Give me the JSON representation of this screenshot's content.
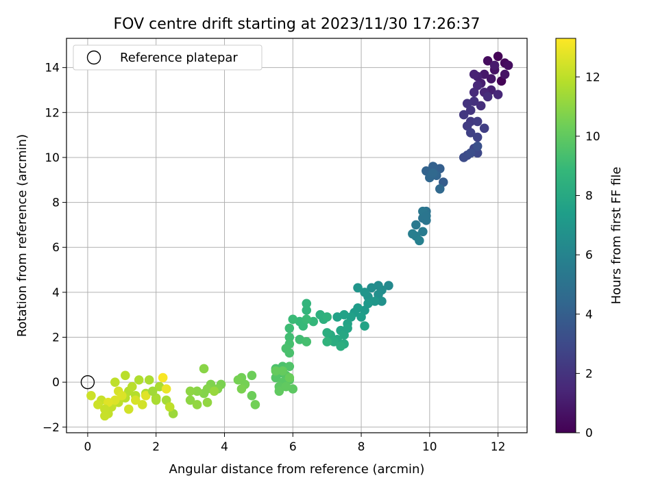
{
  "chart_data": {
    "type": "scatter",
    "title": "FOV centre drift starting at 2023/11/30 17:26:37",
    "xlabel": "Angular distance from reference (arcmin)",
    "ylabel": "Rotation from reference (arcmin)",
    "xlim": [
      -0.62,
      12.85
    ],
    "ylim": [
      -2.25,
      15.3
    ],
    "xticks": [
      "0",
      "2",
      "4",
      "6",
      "8",
      "10",
      "12"
    ],
    "yticks": [
      "−2",
      "0",
      "2",
      "4",
      "6",
      "8",
      "10",
      "12",
      "14"
    ],
    "grid": true,
    "legend": {
      "placement": "top-left",
      "entries": [
        "Reference platepar"
      ]
    },
    "reference_point": {
      "x": 0,
      "y": 0
    },
    "colorbar": {
      "label": "Hours from first FF file",
      "range": [
        0,
        13.3
      ],
      "ticks": [
        "0",
        "2",
        "4",
        "6",
        "8",
        "10",
        "12"
      ],
      "colormap": "viridis"
    },
    "points": [
      {
        "x": 12.0,
        "y": 14.5,
        "t": 0.1
      },
      {
        "x": 12.1,
        "y": 13.4,
        "t": 0.1
      },
      {
        "x": 12.2,
        "y": 14.2,
        "t": 0.3
      },
      {
        "x": 11.7,
        "y": 14.3,
        "t": 0.4
      },
      {
        "x": 12.3,
        "y": 14.1,
        "t": 0.5
      },
      {
        "x": 11.9,
        "y": 13.9,
        "t": 0.6
      },
      {
        "x": 12.2,
        "y": 13.7,
        "t": 0.7
      },
      {
        "x": 11.8,
        "y": 13.5,
        "t": 0.8
      },
      {
        "x": 11.6,
        "y": 13.7,
        "t": 0.9
      },
      {
        "x": 11.9,
        "y": 14.1,
        "t": 1.0
      },
      {
        "x": 11.5,
        "y": 13.3,
        "t": 1.1
      },
      {
        "x": 11.4,
        "y": 13.6,
        "t": 1.2
      },
      {
        "x": 11.8,
        "y": 13.0,
        "t": 1.2
      },
      {
        "x": 11.3,
        "y": 13.7,
        "t": 1.3
      },
      {
        "x": 11.6,
        "y": 12.9,
        "t": 1.4
      },
      {
        "x": 11.4,
        "y": 13.2,
        "t": 1.5
      },
      {
        "x": 12.0,
        "y": 12.8,
        "t": 1.5
      },
      {
        "x": 11.3,
        "y": 12.9,
        "t": 1.6
      },
      {
        "x": 11.7,
        "y": 12.7,
        "t": 1.7
      },
      {
        "x": 11.5,
        "y": 12.3,
        "t": 1.8
      },
      {
        "x": 11.3,
        "y": 12.5,
        "t": 1.9
      },
      {
        "x": 11.1,
        "y": 12.4,
        "t": 2.0
      },
      {
        "x": 11.2,
        "y": 12.1,
        "t": 2.1
      },
      {
        "x": 11.0,
        "y": 11.9,
        "t": 2.2
      },
      {
        "x": 11.2,
        "y": 11.6,
        "t": 2.3
      },
      {
        "x": 11.4,
        "y": 11.6,
        "t": 2.4
      },
      {
        "x": 11.1,
        "y": 11.4,
        "t": 2.4
      },
      {
        "x": 11.6,
        "y": 11.3,
        "t": 2.5
      },
      {
        "x": 11.2,
        "y": 11.1,
        "t": 2.6
      },
      {
        "x": 11.4,
        "y": 10.9,
        "t": 2.7
      },
      {
        "x": 11.3,
        "y": 10.4,
        "t": 2.8
      },
      {
        "x": 11.4,
        "y": 10.2,
        "t": 2.9
      },
      {
        "x": 11.1,
        "y": 10.1,
        "t": 3.0
      },
      {
        "x": 11.0,
        "y": 10.0,
        "t": 3.1
      },
      {
        "x": 11.2,
        "y": 10.2,
        "t": 3.2
      },
      {
        "x": 11.4,
        "y": 10.5,
        "t": 3.3
      },
      {
        "x": 10.4,
        "y": 8.9,
        "t": 3.9
      },
      {
        "x": 10.3,
        "y": 9.5,
        "t": 4.0
      },
      {
        "x": 10.1,
        "y": 9.6,
        "t": 4.1
      },
      {
        "x": 9.9,
        "y": 9.4,
        "t": 4.2
      },
      {
        "x": 10.2,
        "y": 9.2,
        "t": 4.3
      },
      {
        "x": 10.0,
        "y": 9.1,
        "t": 4.4
      },
      {
        "x": 10.3,
        "y": 8.6,
        "t": 4.5
      },
      {
        "x": 10.1,
        "y": 9.3,
        "t": 4.5
      },
      {
        "x": 9.9,
        "y": 7.6,
        "t": 5.0
      },
      {
        "x": 9.8,
        "y": 7.3,
        "t": 5.1
      },
      {
        "x": 9.9,
        "y": 7.2,
        "t": 5.2
      },
      {
        "x": 9.8,
        "y": 7.6,
        "t": 5.3
      },
      {
        "x": 9.6,
        "y": 7.0,
        "t": 5.4
      },
      {
        "x": 9.8,
        "y": 6.7,
        "t": 5.5
      },
      {
        "x": 9.6,
        "y": 6.5,
        "t": 5.6
      },
      {
        "x": 9.5,
        "y": 6.6,
        "t": 5.7
      },
      {
        "x": 9.7,
        "y": 6.3,
        "t": 5.8
      },
      {
        "x": 9.9,
        "y": 7.4,
        "t": 5.2
      },
      {
        "x": 8.8,
        "y": 4.3,
        "t": 6.3
      },
      {
        "x": 8.5,
        "y": 4.3,
        "t": 6.4
      },
      {
        "x": 8.6,
        "y": 4.1,
        "t": 6.5
      },
      {
        "x": 8.3,
        "y": 4.2,
        "t": 6.5
      },
      {
        "x": 8.5,
        "y": 3.9,
        "t": 6.6
      },
      {
        "x": 8.6,
        "y": 3.6,
        "t": 6.7
      },
      {
        "x": 8.2,
        "y": 3.8,
        "t": 6.8
      },
      {
        "x": 8.1,
        "y": 4.0,
        "t": 6.9
      },
      {
        "x": 7.9,
        "y": 4.2,
        "t": 6.9
      },
      {
        "x": 8.4,
        "y": 3.6,
        "t": 7.0
      },
      {
        "x": 8.2,
        "y": 3.5,
        "t": 7.1
      },
      {
        "x": 8.1,
        "y": 3.2,
        "t": 7.2
      },
      {
        "x": 7.9,
        "y": 3.3,
        "t": 7.3
      },
      {
        "x": 7.8,
        "y": 3.1,
        "t": 7.3
      },
      {
        "x": 8.0,
        "y": 2.9,
        "t": 7.4
      },
      {
        "x": 7.7,
        "y": 2.9,
        "t": 7.5
      },
      {
        "x": 7.5,
        "y": 3.0,
        "t": 7.6
      },
      {
        "x": 7.3,
        "y": 2.9,
        "t": 7.6
      },
      {
        "x": 7.6,
        "y": 2.6,
        "t": 7.7
      },
      {
        "x": 8.1,
        "y": 2.5,
        "t": 7.7
      },
      {
        "x": 7.4,
        "y": 2.3,
        "t": 7.8
      },
      {
        "x": 7.5,
        "y": 2.1,
        "t": 7.9
      },
      {
        "x": 7.3,
        "y": 1.9,
        "t": 8.0
      },
      {
        "x": 7.5,
        "y": 1.7,
        "t": 8.1
      },
      {
        "x": 7.1,
        "y": 2.1,
        "t": 8.1
      },
      {
        "x": 7.2,
        "y": 1.8,
        "t": 8.2
      },
      {
        "x": 7.4,
        "y": 1.6,
        "t": 8.3
      },
      {
        "x": 7.0,
        "y": 2.2,
        "t": 8.3
      },
      {
        "x": 6.9,
        "y": 2.8,
        "t": 8.4
      },
      {
        "x": 6.8,
        "y": 3.0,
        "t": 8.4
      },
      {
        "x": 7.0,
        "y": 2.9,
        "t": 8.5
      },
      {
        "x": 7.0,
        "y": 1.8,
        "t": 8.6
      },
      {
        "x": 7.6,
        "y": 2.4,
        "t": 7.8
      },
      {
        "x": 6.4,
        "y": 3.5,
        "t": 8.7
      },
      {
        "x": 6.4,
        "y": 3.2,
        "t": 8.7
      },
      {
        "x": 6.6,
        "y": 2.7,
        "t": 8.8
      },
      {
        "x": 6.2,
        "y": 2.7,
        "t": 8.9
      },
      {
        "x": 6.3,
        "y": 2.5,
        "t": 8.9
      },
      {
        "x": 6.0,
        "y": 2.8,
        "t": 9.0
      },
      {
        "x": 6.4,
        "y": 2.8,
        "t": 9.0
      },
      {
        "x": 5.9,
        "y": 2.4,
        "t": 9.1
      },
      {
        "x": 5.9,
        "y": 2.0,
        "t": 9.2
      },
      {
        "x": 6.2,
        "y": 1.9,
        "t": 9.2
      },
      {
        "x": 6.4,
        "y": 1.8,
        "t": 9.3
      },
      {
        "x": 5.9,
        "y": 1.7,
        "t": 9.3
      },
      {
        "x": 5.8,
        "y": 1.5,
        "t": 9.4
      },
      {
        "x": 5.9,
        "y": 1.3,
        "t": 9.4
      },
      {
        "x": 5.5,
        "y": 0.6,
        "t": 9.5
      },
      {
        "x": 5.7,
        "y": 0.7,
        "t": 9.5
      },
      {
        "x": 5.9,
        "y": 0.7,
        "t": 9.6
      },
      {
        "x": 5.6,
        "y": 0.4,
        "t": 9.6
      },
      {
        "x": 5.8,
        "y": 0.3,
        "t": 9.7
      },
      {
        "x": 5.5,
        "y": 0.2,
        "t": 9.7
      },
      {
        "x": 5.9,
        "y": 0.1,
        "t": 9.8
      },
      {
        "x": 5.7,
        "y": 0.0,
        "t": 9.8
      },
      {
        "x": 5.6,
        "y": -0.2,
        "t": 9.9
      },
      {
        "x": 6.0,
        "y": -0.3,
        "t": 9.9
      },
      {
        "x": 5.8,
        "y": -0.2,
        "t": 10.0
      },
      {
        "x": 5.6,
        "y": -0.4,
        "t": 10.0
      },
      {
        "x": 5.5,
        "y": 0.5,
        "t": 10.1
      },
      {
        "x": 5.7,
        "y": 0.5,
        "t": 10.1
      },
      {
        "x": 5.9,
        "y": 0.2,
        "t": 10.2
      },
      {
        "x": 4.8,
        "y": 0.3,
        "t": 10.3
      },
      {
        "x": 4.8,
        "y": -0.6,
        "t": 10.3
      },
      {
        "x": 4.9,
        "y": -1.0,
        "t": 10.4
      },
      {
        "x": 4.5,
        "y": 0.2,
        "t": 10.4
      },
      {
        "x": 4.4,
        "y": 0.1,
        "t": 10.5
      },
      {
        "x": 4.6,
        "y": -0.1,
        "t": 10.5
      },
      {
        "x": 4.5,
        "y": -0.3,
        "t": 10.6
      },
      {
        "x": 3.9,
        "y": -0.1,
        "t": 10.6
      },
      {
        "x": 3.8,
        "y": -0.3,
        "t": 10.7
      },
      {
        "x": 3.6,
        "y": -0.1,
        "t": 10.7
      },
      {
        "x": 3.5,
        "y": -0.3,
        "t": 10.8
      },
      {
        "x": 3.4,
        "y": -0.5,
        "t": 10.8
      },
      {
        "x": 3.4,
        "y": 0.6,
        "t": 10.9
      },
      {
        "x": 3.2,
        "y": -0.4,
        "t": 10.9
      },
      {
        "x": 3.0,
        "y": -0.4,
        "t": 11.0
      },
      {
        "x": 3.0,
        "y": -0.8,
        "t": 11.0
      },
      {
        "x": 3.2,
        "y": -1.0,
        "t": 11.1
      },
      {
        "x": 3.5,
        "y": -0.9,
        "t": 11.1
      },
      {
        "x": 3.7,
        "y": -0.4,
        "t": 11.2
      },
      {
        "x": 2.5,
        "y": -1.4,
        "t": 11.3
      },
      {
        "x": 2.4,
        "y": -1.1,
        "t": 11.4
      },
      {
        "x": 2.3,
        "y": -0.8,
        "t": 11.5
      },
      {
        "x": 2.0,
        "y": -0.7,
        "t": 11.5
      },
      {
        "x": 2.1,
        "y": -0.2,
        "t": 11.6
      },
      {
        "x": 1.8,
        "y": 0.1,
        "t": 11.6
      },
      {
        "x": 1.7,
        "y": -0.5,
        "t": 11.7
      },
      {
        "x": 1.5,
        "y": 0.1,
        "t": 11.7
      },
      {
        "x": 1.4,
        "y": -0.6,
        "t": 11.8
      },
      {
        "x": 1.2,
        "y": -0.4,
        "t": 11.8
      },
      {
        "x": 1.1,
        "y": -0.7,
        "t": 11.9
      },
      {
        "x": 1.1,
        "y": 0.3,
        "t": 11.9
      },
      {
        "x": 0.9,
        "y": -0.9,
        "t": 12.0
      },
      {
        "x": 0.8,
        "y": 0.0,
        "t": 12.0
      },
      {
        "x": 0.7,
        "y": -1.1,
        "t": 12.1
      },
      {
        "x": 0.6,
        "y": -1.4,
        "t": 12.1
      },
      {
        "x": 0.5,
        "y": -1.5,
        "t": 12.2
      },
      {
        "x": 0.4,
        "y": -0.8,
        "t": 12.2
      },
      {
        "x": 0.3,
        "y": -1.0,
        "t": 12.3
      },
      {
        "x": 0.1,
        "y": -0.6,
        "t": 12.3
      },
      {
        "x": 1.6,
        "y": -1.0,
        "t": 12.4
      },
      {
        "x": 1.2,
        "y": -1.2,
        "t": 12.4
      },
      {
        "x": 0.9,
        "y": -0.4,
        "t": 12.5
      },
      {
        "x": 1.4,
        "y": -0.8,
        "t": 12.5
      },
      {
        "x": 1.0,
        "y": -0.6,
        "t": 12.6
      },
      {
        "x": 0.8,
        "y": -0.8,
        "t": 12.6
      },
      {
        "x": 1.7,
        "y": -0.6,
        "t": 12.7
      },
      {
        "x": 0.6,
        "y": -0.9,
        "t": 12.7
      },
      {
        "x": 2.3,
        "y": -0.3,
        "t": 12.9
      },
      {
        "x": 2.2,
        "y": 0.2,
        "t": 13.2
      },
      {
        "x": 1.9,
        "y": -0.4,
        "t": 11.4
      },
      {
        "x": 2.0,
        "y": -0.8,
        "t": 11.6
      },
      {
        "x": 1.3,
        "y": -0.2,
        "t": 11.9
      },
      {
        "x": 0.5,
        "y": -1.2,
        "t": 12.2
      },
      {
        "x": 2.4,
        "y": -1.1,
        "t": 12.0
      }
    ]
  }
}
